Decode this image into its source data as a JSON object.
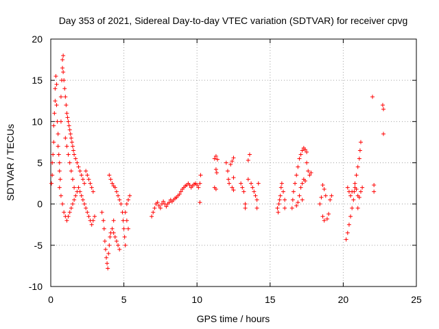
{
  "chart_data": {
    "type": "scatter",
    "title": "Day 353 of 2021, Sidereal Day-to-day VTEC variation (SDTVAR) for receiver cpvg",
    "xlabel": "GPS time / hours",
    "ylabel": "SDTVAR / TECUs",
    "xlim": [
      0,
      25
    ],
    "ylim": [
      -10,
      20
    ],
    "xticks": [
      "0",
      "5",
      "10",
      "15",
      "20",
      "25"
    ],
    "yticks": [
      "-10",
      "-5",
      "0",
      "5",
      "10",
      "15",
      "20"
    ],
    "grid": true,
    "marker": "plus",
    "color": "#ff0000",
    "series": [
      {
        "name": "SDTVAR",
        "points": [
          [
            0.05,
            2.5
          ],
          [
            0.1,
            3.5
          ],
          [
            0.1,
            5
          ],
          [
            0.15,
            6
          ],
          [
            0.2,
            7.5
          ],
          [
            0.2,
            9.5
          ],
          [
            0.25,
            11
          ],
          [
            0.3,
            12.5
          ],
          [
            0.3,
            14
          ],
          [
            0.35,
            15.5
          ],
          [
            0.4,
            14.5
          ],
          [
            0.4,
            12
          ],
          [
            0.45,
            10
          ],
          [
            0.5,
            8.5
          ],
          [
            0.5,
            7
          ],
          [
            0.55,
            6
          ],
          [
            0.6,
            5
          ],
          [
            0.6,
            4
          ],
          [
            0.65,
            3
          ],
          [
            0.7,
            10
          ],
          [
            0.7,
            13
          ],
          [
            0.75,
            15
          ],
          [
            0.8,
            16.5
          ],
          [
            0.8,
            17.5
          ],
          [
            0.85,
            18
          ],
          [
            0.85,
            16
          ],
          [
            0.9,
            15
          ],
          [
            0.95,
            14
          ],
          [
            1.0,
            13
          ],
          [
            1.05,
            12
          ],
          [
            1.1,
            11
          ],
          [
            1.15,
            10.5
          ],
          [
            1.2,
            10
          ],
          [
            1.25,
            9.5
          ],
          [
            1.3,
            9
          ],
          [
            1.35,
            8.5
          ],
          [
            1.4,
            8
          ],
          [
            1.45,
            7.5
          ],
          [
            1.5,
            7
          ],
          [
            1.55,
            6.5
          ],
          [
            1.6,
            6
          ],
          [
            1.7,
            5.5
          ],
          [
            1.8,
            5
          ],
          [
            1.9,
            4.5
          ],
          [
            2.0,
            4
          ],
          [
            2.1,
            3.5
          ],
          [
            2.2,
            3
          ],
          [
            2.3,
            2.5
          ],
          [
            0.6,
            2
          ],
          [
            0.7,
            1
          ],
          [
            0.8,
            0
          ],
          [
            0.9,
            -1
          ],
          [
            1.0,
            -1.5
          ],
          [
            1.1,
            -2
          ],
          [
            1.2,
            -1.5
          ],
          [
            1.3,
            -1
          ],
          [
            1.4,
            -0.5
          ],
          [
            1.5,
            0
          ],
          [
            1.6,
            0.5
          ],
          [
            1.7,
            1
          ],
          [
            1.8,
            1.5
          ],
          [
            1.9,
            2
          ],
          [
            2.0,
            1.5
          ],
          [
            2.1,
            1
          ],
          [
            2.2,
            0.5
          ],
          [
            2.3,
            0
          ],
          [
            2.4,
            -0.5
          ],
          [
            2.5,
            -1
          ],
          [
            2.6,
            -1.5
          ],
          [
            2.7,
            -2
          ],
          [
            2.8,
            -2.5
          ],
          [
            2.9,
            -2
          ],
          [
            3.0,
            -1.5
          ],
          [
            1.0,
            8
          ],
          [
            1.1,
            7
          ],
          [
            1.2,
            6
          ],
          [
            1.3,
            5
          ],
          [
            1.4,
            4
          ],
          [
            1.5,
            3
          ],
          [
            1.6,
            2
          ],
          [
            2.4,
            4
          ],
          [
            2.5,
            3.5
          ],
          [
            2.6,
            3
          ],
          [
            2.7,
            2.5
          ],
          [
            2.8,
            2
          ],
          [
            2.9,
            1.5
          ],
          [
            3.5,
            -1
          ],
          [
            3.6,
            -2
          ],
          [
            3.65,
            -3
          ],
          [
            3.7,
            -4.5
          ],
          [
            3.75,
            -5.5
          ],
          [
            3.8,
            -6.5
          ],
          [
            3.85,
            -7.2
          ],
          [
            3.9,
            -7.8
          ],
          [
            3.95,
            -6
          ],
          [
            4.0,
            -5
          ],
          [
            4.05,
            -4
          ],
          [
            4.1,
            -3.5
          ],
          [
            4.2,
            -3
          ],
          [
            4.3,
            -2
          ],
          [
            4.0,
            3.5
          ],
          [
            4.1,
            3
          ],
          [
            4.2,
            2.5
          ],
          [
            4.3,
            2.2
          ],
          [
            4.4,
            2
          ],
          [
            4.5,
            1.5
          ],
          [
            4.6,
            1
          ],
          [
            4.7,
            0.5
          ],
          [
            4.8,
            0
          ],
          [
            4.9,
            -1
          ],
          [
            4.95,
            -2
          ],
          [
            5.0,
            -3
          ],
          [
            5.05,
            -4
          ],
          [
            5.1,
            -5
          ],
          [
            4.7,
            -5.5
          ],
          [
            4.6,
            -5
          ],
          [
            4.5,
            -4.5
          ],
          [
            4.4,
            -4
          ],
          [
            4.3,
            -3.5
          ],
          [
            5.1,
            -1
          ],
          [
            5.2,
            0
          ],
          [
            5.3,
            0.5
          ],
          [
            5.4,
            1
          ],
          [
            5.2,
            -2
          ],
          [
            5.3,
            -3
          ],
          [
            6.9,
            -1.5
          ],
          [
            7.0,
            -1
          ],
          [
            7.1,
            -0.5
          ],
          [
            7.2,
            0
          ],
          [
            7.3,
            0.2
          ],
          [
            7.4,
            -0.2
          ],
          [
            7.5,
            -0.5
          ],
          [
            7.6,
            0
          ],
          [
            7.7,
            0.3
          ],
          [
            7.8,
            0
          ],
          [
            7.9,
            -0.3
          ],
          [
            8.0,
            0
          ],
          [
            8.1,
            0.2
          ],
          [
            8.2,
            0.5
          ],
          [
            8.3,
            0.3
          ],
          [
            8.4,
            0.5
          ],
          [
            8.5,
            0.7
          ],
          [
            8.6,
            0.8
          ],
          [
            8.7,
            1
          ],
          [
            8.8,
            1.2
          ],
          [
            8.9,
            1.5
          ],
          [
            9.0,
            1.8
          ],
          [
            9.1,
            2
          ],
          [
            9.2,
            2.2
          ],
          [
            9.3,
            2.3
          ],
          [
            9.4,
            2.5
          ],
          [
            9.5,
            2.3
          ],
          [
            9.6,
            2
          ],
          [
            9.7,
            2.2
          ],
          [
            9.8,
            2.4
          ],
          [
            9.9,
            2.5
          ],
          [
            10.0,
            2.3
          ],
          [
            10.1,
            2
          ],
          [
            10.2,
            2.5
          ],
          [
            10.25,
            3.5
          ],
          [
            10.2,
            0.2
          ],
          [
            11.2,
            5.5
          ],
          [
            11.3,
            5.8
          ],
          [
            11.4,
            5.4
          ],
          [
            11.2,
            2
          ],
          [
            11.3,
            1.8
          ],
          [
            11.3,
            4.2
          ],
          [
            11.35,
            3.8
          ],
          [
            12.0,
            5
          ],
          [
            12.1,
            4
          ],
          [
            12.15,
            3
          ],
          [
            12.2,
            2.5
          ],
          [
            12.3,
            4.8
          ],
          [
            12.4,
            5.2
          ],
          [
            12.5,
            5.6
          ],
          [
            12.4,
            2
          ],
          [
            12.5,
            1.7
          ],
          [
            12.5,
            3.2
          ],
          [
            13.0,
            2.5
          ],
          [
            13.1,
            2
          ],
          [
            13.2,
            1.5
          ],
          [
            13.3,
            0
          ],
          [
            13.3,
            -0.5
          ],
          [
            13.5,
            3
          ],
          [
            13.5,
            5.3
          ],
          [
            13.6,
            6
          ],
          [
            13.7,
            2.5
          ],
          [
            13.8,
            2
          ],
          [
            13.9,
            1.5
          ],
          [
            14.0,
            1
          ],
          [
            14.1,
            0.5
          ],
          [
            14.1,
            -0.5
          ],
          [
            14.2,
            2.5
          ],
          [
            15.5,
            -0.5
          ],
          [
            15.55,
            -1
          ],
          [
            15.6,
            0
          ],
          [
            15.65,
            0.5
          ],
          [
            15.7,
            1
          ],
          [
            15.75,
            2
          ],
          [
            15.8,
            2.5
          ],
          [
            15.9,
            1.5
          ],
          [
            16.0,
            0.5
          ],
          [
            16.0,
            -0.5
          ],
          [
            16.5,
            -0.5
          ],
          [
            16.55,
            0.5
          ],
          [
            16.6,
            1.5
          ],
          [
            16.7,
            2.5
          ],
          [
            16.8,
            3.5
          ],
          [
            16.9,
            4.5
          ],
          [
            17.0,
            5.5
          ],
          [
            17.1,
            6
          ],
          [
            17.2,
            6.5
          ],
          [
            17.3,
            6.8
          ],
          [
            17.4,
            6.6
          ],
          [
            17.5,
            6.3
          ],
          [
            17.5,
            5
          ],
          [
            17.6,
            4
          ],
          [
            17.7,
            3.5
          ],
          [
            17.0,
            1
          ],
          [
            17.1,
            2
          ],
          [
            17.2,
            2.5
          ],
          [
            17.3,
            3
          ],
          [
            17.4,
            2.8
          ],
          [
            17.2,
            0.5
          ],
          [
            16.9,
            0.2
          ],
          [
            16.8,
            -0.2
          ],
          [
            17.8,
            3.8
          ],
          [
            18.6,
            2.3
          ],
          [
            18.7,
            1.8
          ],
          [
            18.8,
            1
          ],
          [
            18.5,
            0.8
          ],
          [
            18.4,
            0
          ],
          [
            18.6,
            -1.5
          ],
          [
            18.7,
            -2
          ],
          [
            18.9,
            -1.8
          ],
          [
            19.0,
            -1.2
          ],
          [
            19.1,
            0.5
          ],
          [
            19.2,
            1
          ],
          [
            20.2,
            -4.3
          ],
          [
            20.3,
            -3.5
          ],
          [
            20.4,
            -2.5
          ],
          [
            20.5,
            -1.5
          ],
          [
            20.6,
            -0.5
          ],
          [
            20.7,
            0.5
          ],
          [
            20.75,
            1.5
          ],
          [
            20.8,
            2.5
          ],
          [
            20.9,
            3.5
          ],
          [
            21.0,
            4.5
          ],
          [
            21.1,
            5.5
          ],
          [
            21.15,
            6.5
          ],
          [
            21.2,
            7.5
          ],
          [
            20.3,
            2
          ],
          [
            20.4,
            1.5
          ],
          [
            20.5,
            1
          ],
          [
            20.6,
            1.5
          ],
          [
            20.8,
            2
          ],
          [
            20.9,
            1.8
          ],
          [
            21.0,
            1
          ],
          [
            21.1,
            0.8
          ],
          [
            21.2,
            1.5
          ],
          [
            21.3,
            2
          ],
          [
            21.0,
            -0.5
          ],
          [
            22.0,
            13
          ],
          [
            22.1,
            2.3
          ],
          [
            22.1,
            1.5
          ],
          [
            22.7,
            12
          ],
          [
            22.75,
            11.5
          ],
          [
            22.75,
            8.5
          ]
        ]
      }
    ]
  }
}
